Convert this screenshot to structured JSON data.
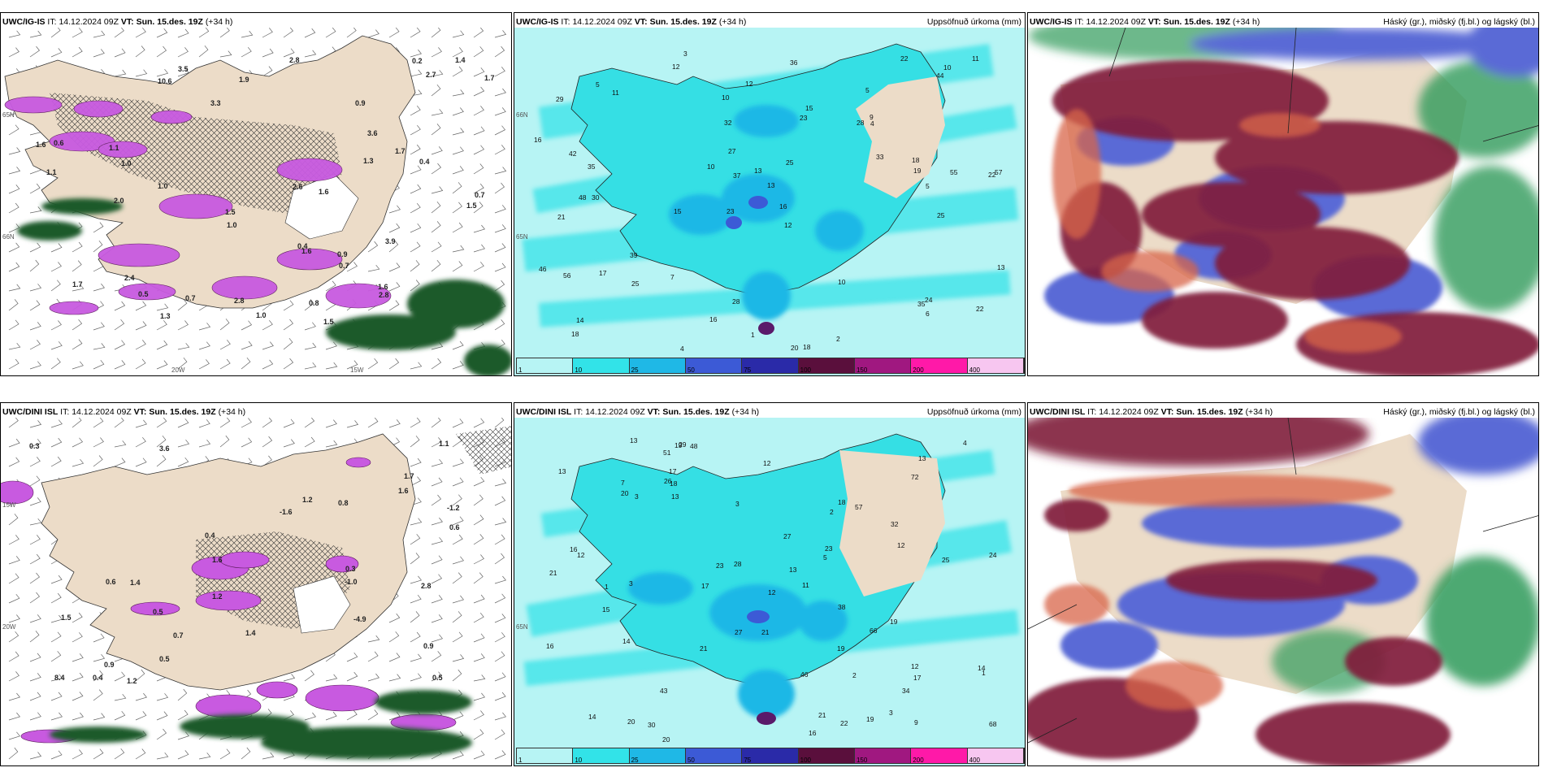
{
  "colors": {
    "land": "#ecdcc8",
    "precip_light": "#b7f4f4",
    "precip_mid": "#32e3e8",
    "precip_blue": "#1fb8e6",
    "magenta": "#c85ae0",
    "darkgreen": "#1c5a2c",
    "maroon": "#801c3a",
    "cloud_blue": "#5a6ad6"
  },
  "rows": [
    {
      "model": "UWC/IG-IS",
      "panels": [
        {
          "model": "UWC/IG-IS",
          "it_label": "IT:",
          "it": "14.12.2024 09Z",
          "vt_label": "VT:",
          "vt": "Sun. 15.des. 19Z",
          "lead": "(+34 h)",
          "title_right": "",
          "ticks": [
            "66N",
            "65N",
            "20W",
            "15W"
          ],
          "values": [
            "1.5",
            "10.6",
            "2.4",
            "1.1",
            "1.7",
            "0.8",
            "1.5",
            "1.0",
            "1.0",
            "0.5",
            "1.7",
            "1.6",
            "1.5",
            "0.4",
            "1.3",
            "0.2",
            "1.1",
            "2.7",
            "3.9",
            "0.4",
            "1.6",
            "1.6",
            "1.3",
            "2.8",
            "1.6",
            "3.6",
            "2.0",
            "1.0",
            "1.0",
            "3.3",
            "0.7",
            "1.4",
            "0.9",
            "0.7",
            "3.5",
            "2.8",
            "2.8",
            "0.6",
            "0.7",
            "0.9",
            "1.9",
            "2.6",
            "1.7"
          ]
        },
        {
          "model": "UWC/IG-IS",
          "it_label": "IT:",
          "it": "14.12.2024 09Z",
          "vt_label": "VT:",
          "vt": "Sun. 15.des. 19Z",
          "lead": "(+34 h)",
          "title_right": "Uppsöfnuð úrkoma (mm)",
          "ticks": [
            "65N",
            "66N"
          ],
          "values": [
            "3",
            "5",
            "22",
            "23",
            "12",
            "30",
            "29",
            "28",
            "21",
            "23",
            "13",
            "18",
            "12",
            "15",
            "20",
            "18",
            "28",
            "22",
            "33",
            "39",
            "35",
            "48",
            "57",
            "55",
            "46",
            "42",
            "37",
            "19",
            "24",
            "56",
            "35",
            "15",
            "17",
            "10",
            "10",
            "13",
            "18",
            "16",
            "11",
            "12",
            "14",
            "4",
            "2",
            "5",
            "1",
            "4",
            "6",
            "9",
            "16",
            "16",
            "10",
            "5",
            "25",
            "44",
            "36",
            "25",
            "27",
            "13",
            "10",
            "32",
            "22",
            "25",
            "11",
            "7"
          ],
          "legend": [
            "1",
            "10",
            "25",
            "50",
            "75",
            "100",
            "150",
            "200",
            "400"
          ]
        },
        {
          "model": "UWC/IG-IS",
          "it_label": "IT:",
          "it": "14.12.2024 09Z",
          "vt_label": "VT:",
          "vt": "Sun. 15.des. 19Z",
          "lead": "(+34 h)",
          "title_right": "Háský (gr.), miðský (fj.bl.) og lágský (bl.)"
        }
      ]
    },
    {
      "model": "UWC/DINI ISL",
      "panels": [
        {
          "model": "UWC/DINI ISL",
          "it_label": "IT:",
          "it": "14.12.2024 09Z",
          "vt_label": "VT:",
          "vt": "Sun. 15.des. 19Z",
          "lead": "(+34 h)",
          "title_right": "",
          "ticks": [
            "20W",
            "15W"
          ],
          "values": [
            "8.4",
            "-4.9",
            "1.2",
            "-1.0",
            "0.5",
            "1.6",
            "3.6",
            "1.4",
            "-1.6",
            "1.2",
            "2.8",
            "0.9",
            "1.7",
            "0.7",
            "0.3",
            "0.4",
            "1.4",
            "1.6",
            "0.5",
            "0.6",
            "0.8",
            "0.9",
            "0.3",
            "0.4",
            "1.2",
            "-1.2",
            "0.6",
            "0.5",
            "1.1",
            "1.5"
          ]
        },
        {
          "model": "UWC/DINI ISL",
          "it_label": "IT:",
          "it": "14.12.2024 09Z",
          "vt_label": "VT:",
          "vt": "Sun. 15.des. 19Z",
          "lead": "(+34 h)",
          "title_right": "Uppsöfnuð úrkoma (mm)",
          "ticks": [
            "65N"
          ],
          "values": [
            "3",
            "3",
            "12",
            "2",
            "20",
            "19",
            "17",
            "20",
            "23",
            "15",
            "21",
            "16",
            "21",
            "19",
            "13",
            "12",
            "13",
            "21",
            "34",
            "25",
            "20",
            "29",
            "30",
            "57",
            "66",
            "51",
            "43",
            "48",
            "19",
            "17",
            "12",
            "18",
            "16",
            "13",
            "22",
            "68",
            "72",
            "38",
            "13",
            "21",
            "24",
            "23",
            "18",
            "14",
            "16",
            "7",
            "4",
            "3",
            "2",
            "3",
            "5",
            "1",
            "1",
            "14",
            "12",
            "12",
            "13",
            "11",
            "17",
            "32",
            "27",
            "26",
            "46",
            "19",
            "14",
            "9",
            "27",
            "28"
          ],
          "legend": [
            "1",
            "10",
            "25",
            "50",
            "75",
            "100",
            "150",
            "200",
            "400"
          ]
        },
        {
          "model": "UWC/DINI ISL",
          "it_label": "IT:",
          "it": "14.12.2024 09Z",
          "vt_label": "VT:",
          "vt": "Sun. 15.des. 19Z",
          "lead": "(+34 h)",
          "title_right": "Háský (gr.), miðský (fj.bl.) og lágský (bl.)"
        }
      ]
    }
  ]
}
